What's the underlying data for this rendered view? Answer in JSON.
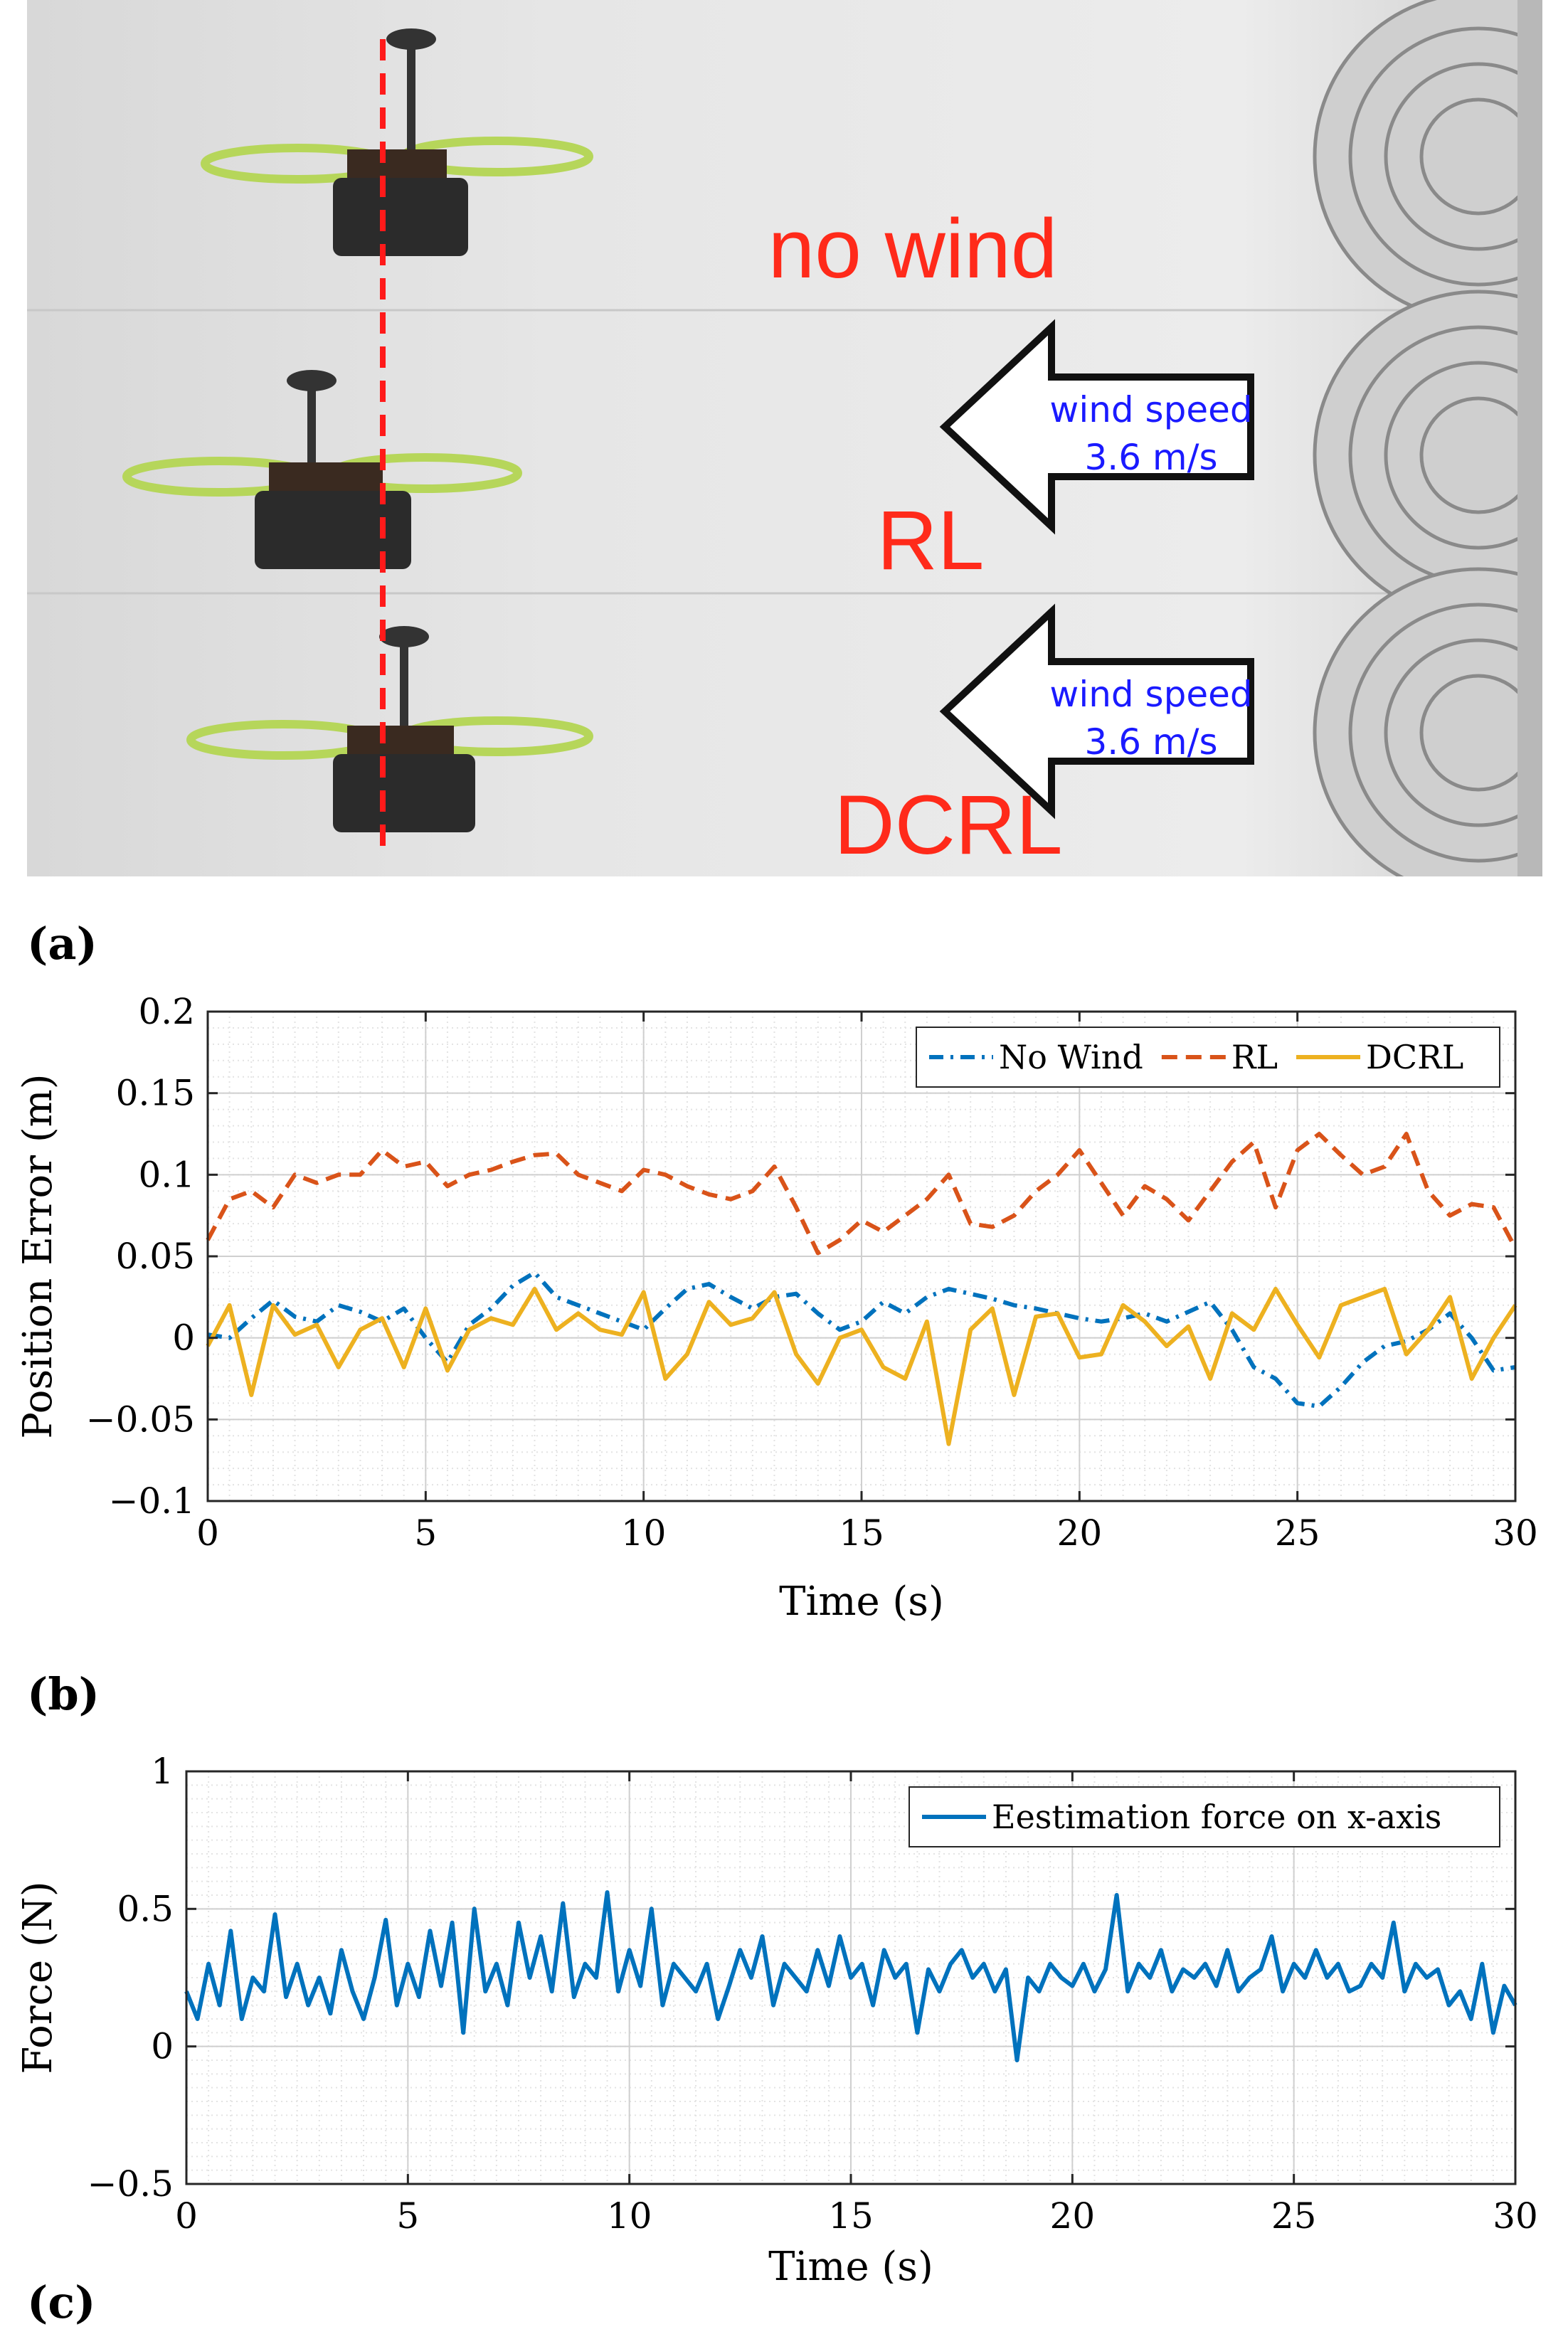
{
  "photo": {
    "strips": [
      {
        "caption": "no wind"
      },
      {
        "caption": "RL",
        "arrow_line1": "wind speed",
        "arrow_line2": "3.6 m/s"
      },
      {
        "caption": "DCRL",
        "arrow_line1": "wind speed",
        "arrow_line2": "3.6 m/s"
      }
    ],
    "colors": {
      "caption": "#ff2a1a",
      "arrow_text": "#1a1aff",
      "reference_line": "#ff1a1a"
    }
  },
  "labels": {
    "a": "(a)",
    "b": "(b)",
    "c": "(c)"
  },
  "chart_data": [
    {
      "type": "line",
      "title": "",
      "xlabel": "Time (s)",
      "ylabel": "Position Error (m)",
      "xlim": [
        0,
        30
      ],
      "ylim": [
        -0.1,
        0.2
      ],
      "xticks": [
        0,
        5,
        10,
        15,
        20,
        25,
        30
      ],
      "yticks": [
        -0.1,
        -0.05,
        0,
        0.05,
        0.1,
        0.15,
        0.2
      ],
      "xtick_labels": [
        "0",
        "5",
        "10",
        "15",
        "20",
        "25",
        "30"
      ],
      "ytick_labels": [
        "−0.1",
        "−0.05",
        "0",
        "0.05",
        "0.1",
        "0.15",
        "0.2"
      ],
      "grid": true,
      "legend_position": "top-right",
      "series": [
        {
          "name": "No Wind",
          "color": "#0072BD",
          "style": "dashdot",
          "x": [
            0,
            0.5,
            1,
            1.5,
            2,
            2.5,
            3,
            3.5,
            4,
            4.5,
            5,
            5.5,
            6,
            6.5,
            7,
            7.5,
            8,
            8.5,
            9,
            9.5,
            10,
            10.5,
            11,
            11.5,
            12,
            12.5,
            13,
            13.5,
            14,
            14.5,
            15,
            15.5,
            16,
            16.5,
            17,
            17.5,
            18,
            18.5,
            19,
            19.5,
            20,
            20.5,
            21,
            21.5,
            22,
            22.5,
            23,
            23.5,
            24,
            24.5,
            25,
            25.5,
            26,
            26.5,
            27,
            27.5,
            28,
            28.5,
            29,
            29.5,
            30
          ],
          "values": [
            0.002,
            0,
            0.012,
            0.023,
            0.013,
            0.01,
            0.02,
            0.016,
            0.01,
            0.018,
            0,
            -0.015,
            0.008,
            0.018,
            0.032,
            0.04,
            0.025,
            0.02,
            0.015,
            0.01,
            0.005,
            0.018,
            0.03,
            0.033,
            0.025,
            0.018,
            0.025,
            0.027,
            0.015,
            0.005,
            0.01,
            0.022,
            0.015,
            0.025,
            0.03,
            0.027,
            0.024,
            0.02,
            0.018,
            0.015,
            0.012,
            0.01,
            0.012,
            0.015,
            0.01,
            0.016,
            0.022,
            0.005,
            -0.018,
            -0.025,
            -0.04,
            -0.042,
            -0.03,
            -0.015,
            -0.005,
            -0.002,
            0.005,
            0.015,
            0,
            -0.02,
            -0.018
          ]
        },
        {
          "name": "RL",
          "color": "#D95319",
          "style": "dashed",
          "x": [
            0,
            0.5,
            1,
            1.5,
            2,
            2.5,
            3,
            3.5,
            4,
            4.5,
            5,
            5.5,
            6,
            6.5,
            7,
            7.5,
            8,
            8.5,
            9,
            9.5,
            10,
            10.5,
            11,
            11.5,
            12,
            12.5,
            13,
            13.5,
            14,
            14.5,
            15,
            15.5,
            16,
            16.5,
            17,
            17.5,
            18,
            18.5,
            19,
            19.5,
            20,
            20.5,
            21,
            21.5,
            22,
            22.5,
            23,
            23.5,
            24,
            24.5,
            25,
            25.5,
            26,
            26.5,
            27,
            27.5,
            28,
            28.5,
            29,
            29.5,
            30
          ],
          "values": [
            0.06,
            0.085,
            0.09,
            0.08,
            0.1,
            0.095,
            0.1,
            0.1,
            0.115,
            0.105,
            0.108,
            0.093,
            0.1,
            0.103,
            0.108,
            0.112,
            0.113,
            0.1,
            0.095,
            0.09,
            0.103,
            0.1,
            0.093,
            0.088,
            0.085,
            0.09,
            0.105,
            0.08,
            0.052,
            0.06,
            0.072,
            0.065,
            0.075,
            0.085,
            0.1,
            0.07,
            0.068,
            0.075,
            0.09,
            0.1,
            0.115,
            0.095,
            0.075,
            0.093,
            0.085,
            0.072,
            0.09,
            0.108,
            0.12,
            0.08,
            0.115,
            0.125,
            0.112,
            0.1,
            0.105,
            0.125,
            0.09,
            0.075,
            0.082,
            0.08,
            0.055
          ]
        },
        {
          "name": "DCRL",
          "color": "#EDB120",
          "style": "solid",
          "x": [
            0,
            0.5,
            1,
            1.5,
            2,
            2.5,
            3,
            3.5,
            4,
            4.5,
            5,
            5.5,
            6,
            6.5,
            7,
            7.5,
            8,
            8.5,
            9,
            9.5,
            10,
            10.5,
            11,
            11.5,
            12,
            12.5,
            13,
            13.5,
            14,
            14.5,
            15,
            15.5,
            16,
            16.5,
            17,
            17.5,
            18,
            18.5,
            19,
            19.5,
            20,
            20.5,
            21,
            21.5,
            22,
            22.5,
            23,
            23.5,
            24,
            24.5,
            25,
            25.5,
            26,
            26.5,
            27,
            27.5,
            28,
            28.5,
            29,
            29.5,
            30
          ],
          "values": [
            -0.005,
            0.02,
            -0.035,
            0.02,
            0.002,
            0.008,
            -0.018,
            0.005,
            0.012,
            -0.018,
            0.018,
            -0.02,
            0.005,
            0.012,
            0.008,
            0.03,
            0.005,
            0.015,
            0.005,
            0.002,
            0.028,
            -0.025,
            -0.01,
            0.022,
            0.008,
            0.012,
            0.028,
            -0.01,
            -0.028,
            0,
            0.005,
            -0.018,
            -0.025,
            0.01,
            -0.065,
            0.005,
            0.018,
            -0.035,
            0.013,
            0.015,
            -0.012,
            -0.01,
            0.02,
            0.01,
            -0.005,
            0.007,
            -0.025,
            0.015,
            0.005,
            0.03,
            0.008,
            -0.012,
            0.02,
            0.025,
            0.03,
            -0.01,
            0.005,
            0.025,
            -0.025,
            0,
            0.02
          ]
        }
      ]
    },
    {
      "type": "line",
      "title": "",
      "xlabel": "Time (s)",
      "ylabel": "Force (N)",
      "xlim": [
        0,
        30
      ],
      "ylim": [
        -0.5,
        1
      ],
      "xticks": [
        0,
        5,
        10,
        15,
        20,
        25,
        30
      ],
      "yticks": [
        -0.5,
        0,
        0.5,
        1
      ],
      "xtick_labels": [
        "0",
        "5",
        "10",
        "15",
        "20",
        "25",
        "30"
      ],
      "ytick_labels": [
        "−0.5",
        "0",
        "0.5",
        "1"
      ],
      "grid": true,
      "legend_position": "top-right",
      "series": [
        {
          "name": "Eestimation force on x-axis",
          "color": "#0072BD",
          "style": "solid",
          "x": [
            0,
            0.25,
            0.5,
            0.75,
            1,
            1.25,
            1.5,
            1.75,
            2,
            2.25,
            2.5,
            2.75,
            3,
            3.25,
            3.5,
            3.75,
            4,
            4.25,
            4.5,
            4.75,
            5,
            5.25,
            5.5,
            5.75,
            6,
            6.25,
            6.5,
            6.75,
            7,
            7.25,
            7.5,
            7.75,
            8,
            8.25,
            8.5,
            8.75,
            9,
            9.25,
            9.5,
            9.75,
            10,
            10.25,
            10.5,
            10.75,
            11,
            11.25,
            11.5,
            11.75,
            12,
            12.25,
            12.5,
            12.75,
            13,
            13.25,
            13.5,
            13.75,
            14,
            14.25,
            14.5,
            14.75,
            15,
            15.25,
            15.5,
            15.75,
            16,
            16.25,
            16.5,
            16.75,
            17,
            17.25,
            17.5,
            17.75,
            18,
            18.25,
            18.5,
            18.75,
            19,
            19.25,
            19.5,
            19.75,
            20,
            20.25,
            20.5,
            20.75,
            21,
            21.25,
            21.5,
            21.75,
            22,
            22.25,
            22.5,
            22.75,
            23,
            23.25,
            23.5,
            23.75,
            24,
            24.25,
            24.5,
            24.75,
            25,
            25.25,
            25.5,
            25.75,
            26,
            26.25,
            26.5,
            26.75,
            27,
            27.25,
            27.5,
            27.75,
            28,
            28.25,
            28.5,
            28.75,
            29,
            29.25,
            29.5,
            29.75,
            30
          ],
          "values": [
            0.2,
            0.1,
            0.3,
            0.15,
            0.42,
            0.1,
            0.25,
            0.2,
            0.48,
            0.18,
            0.3,
            0.15,
            0.25,
            0.12,
            0.35,
            0.2,
            0.1,
            0.25,
            0.46,
            0.15,
            0.3,
            0.18,
            0.42,
            0.22,
            0.45,
            0.05,
            0.5,
            0.2,
            0.3,
            0.15,
            0.45,
            0.25,
            0.4,
            0.2,
            0.52,
            0.18,
            0.3,
            0.25,
            0.56,
            0.2,
            0.35,
            0.22,
            0.5,
            0.15,
            0.3,
            0.25,
            0.2,
            0.3,
            0.1,
            0.22,
            0.35,
            0.25,
            0.4,
            0.15,
            0.3,
            0.25,
            0.2,
            0.35,
            0.22,
            0.4,
            0.25,
            0.3,
            0.15,
            0.35,
            0.25,
            0.3,
            0.05,
            0.28,
            0.2,
            0.3,
            0.35,
            0.25,
            0.3,
            0.2,
            0.28,
            -0.05,
            0.25,
            0.2,
            0.3,
            0.25,
            0.22,
            0.3,
            0.2,
            0.28,
            0.55,
            0.2,
            0.3,
            0.25,
            0.35,
            0.2,
            0.28,
            0.25,
            0.3,
            0.22,
            0.35,
            0.2,
            0.25,
            0.28,
            0.4,
            0.2,
            0.3,
            0.25,
            0.35,
            0.25,
            0.3,
            0.2,
            0.22,
            0.3,
            0.25,
            0.45,
            0.2,
            0.3,
            0.25,
            0.28,
            0.15,
            0.2,
            0.1,
            0.3,
            0.05,
            0.22,
            0.15
          ]
        }
      ]
    }
  ]
}
